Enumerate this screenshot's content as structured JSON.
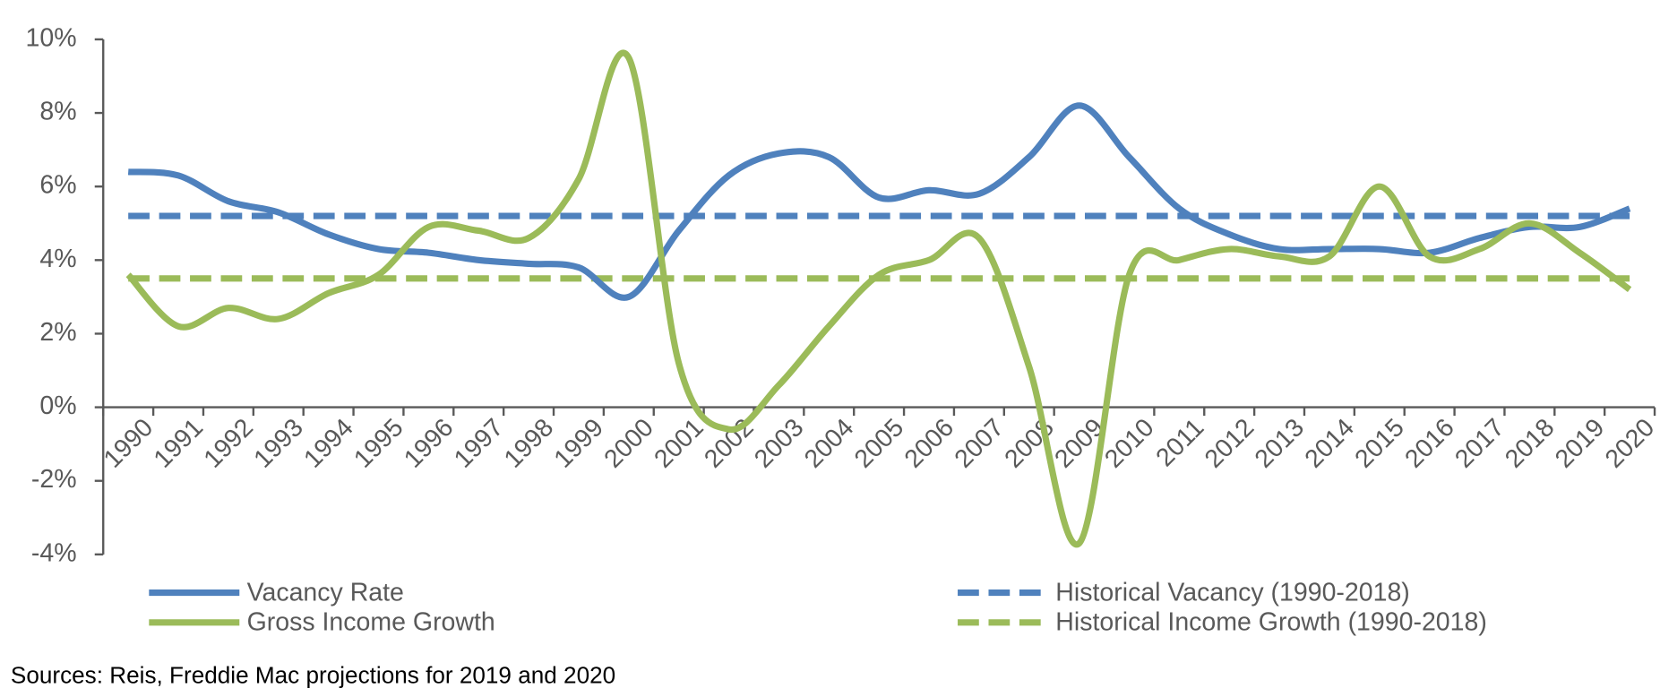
{
  "chart_data": {
    "type": "line",
    "categories": [
      "1990",
      "1991",
      "1992",
      "1993",
      "1994",
      "1995",
      "1996",
      "1997",
      "1998",
      "1999",
      "2000",
      "2001",
      "2002",
      "2003",
      "2004",
      "2005",
      "2006",
      "2007",
      "2008",
      "2009",
      "2010",
      "2011",
      "2012",
      "2013",
      "2014",
      "2015",
      "2016",
      "2017",
      "2018",
      "2019",
      "2020"
    ],
    "series": [
      {
        "name": "Vacancy Rate",
        "color": "#4f81bd",
        "dashed": false,
        "values": [
          6.4,
          6.3,
          5.6,
          5.3,
          4.7,
          4.3,
          4.2,
          4.0,
          3.9,
          3.8,
          3.0,
          4.8,
          6.3,
          6.9,
          6.8,
          5.7,
          5.9,
          5.8,
          6.8,
          8.2,
          6.8,
          5.4,
          4.7,
          4.3,
          4.3,
          4.3,
          4.2,
          4.6,
          4.9,
          4.9,
          5.4
        ]
      },
      {
        "name": "Gross Income Growth",
        "color": "#9bbb59",
        "dashed": false,
        "values": [
          3.6,
          2.2,
          2.7,
          2.4,
          3.1,
          3.6,
          4.9,
          4.8,
          4.6,
          6.2,
          9.5,
          1.2,
          -0.6,
          0.6,
          2.2,
          3.6,
          4.0,
          4.6,
          1.1,
          -3.7,
          3.6,
          4.0,
          4.3,
          4.1,
          4.1,
          6.0,
          4.1,
          4.3,
          5.0,
          4.2,
          3.2
        ]
      },
      {
        "name": "Historical Vacancy (1990-2018)",
        "color": "#4f81bd",
        "dashed": true,
        "values": [
          5.2,
          5.2,
          5.2,
          5.2,
          5.2,
          5.2,
          5.2,
          5.2,
          5.2,
          5.2,
          5.2,
          5.2,
          5.2,
          5.2,
          5.2,
          5.2,
          5.2,
          5.2,
          5.2,
          5.2,
          5.2,
          5.2,
          5.2,
          5.2,
          5.2,
          5.2,
          5.2,
          5.2,
          5.2,
          5.2,
          5.2
        ]
      },
      {
        "name": "Historical Income Growth (1990-2018)",
        "color": "#9bbb59",
        "dashed": true,
        "values": [
          3.5,
          3.5,
          3.5,
          3.5,
          3.5,
          3.5,
          3.5,
          3.5,
          3.5,
          3.5,
          3.5,
          3.5,
          3.5,
          3.5,
          3.5,
          3.5,
          3.5,
          3.5,
          3.5,
          3.5,
          3.5,
          3.5,
          3.5,
          3.5,
          3.5,
          3.5,
          3.5,
          3.5,
          3.5,
          3.5,
          3.5
        ]
      }
    ],
    "ylim": [
      -4,
      10
    ],
    "yticks": [
      {
        "value": -4,
        "label": "-4%"
      },
      {
        "value": -2,
        "label": "-2%"
      },
      {
        "value": 0,
        "label": "0%"
      },
      {
        "value": 2,
        "label": "2%"
      },
      {
        "value": 4,
        "label": "4%"
      },
      {
        "value": 6,
        "label": "6%"
      },
      {
        "value": 8,
        "label": "8%"
      },
      {
        "value": 10,
        "label": "10%"
      }
    ],
    "smooth": true,
    "source": "Sources: Reis, Freddie Mac projections for 2019 and 2020"
  }
}
